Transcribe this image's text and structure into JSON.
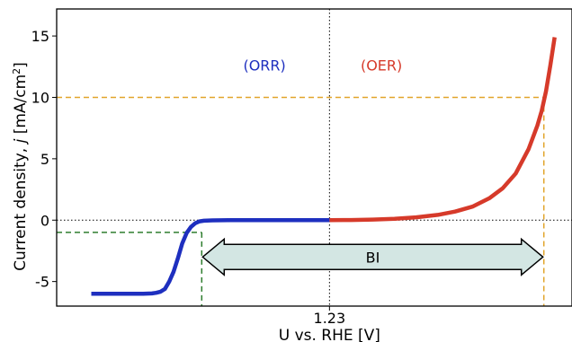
{
  "chart_data": {
    "type": "line",
    "xlabel": "U vs. RHE [V]",
    "ylabel_parts": {
      "pre": "Current density, ",
      "italic": "j",
      "mid": " [mA/cm",
      "sup": "2",
      "post": "]"
    },
    "x_ticks": [
      {
        "value": 1.23,
        "label": "1.23"
      }
    ],
    "y_ticks": [
      {
        "value": 15,
        "label": "15"
      },
      {
        "value": 10,
        "label": "10"
      },
      {
        "value": 5,
        "label": "5"
      },
      {
        "value": 0,
        "label": "0"
      },
      {
        "value": -5,
        "label": "-5"
      }
    ],
    "xlim": [
      0.6,
      1.79
    ],
    "ylim": [
      -7.0,
      17.2
    ],
    "grid": false,
    "series": [
      {
        "name": "(ORR)",
        "color": "#1e2fbf",
        "x": [
          0.68,
          0.74,
          0.78,
          0.8,
          0.82,
          0.83,
          0.84,
          0.85,
          0.86,
          0.87,
          0.88,
          0.89,
          0.9,
          0.91,
          0.92,
          0.93,
          0.94,
          0.96,
          0.98,
          1.0,
          1.05,
          1.1,
          1.15,
          1.2,
          1.23
        ],
        "y": [
          -6.0,
          -6.0,
          -6.0,
          -5.99,
          -5.97,
          -5.92,
          -5.82,
          -5.6,
          -5.0,
          -4.2,
          -3.1,
          -1.9,
          -1.05,
          -0.55,
          -0.25,
          -0.1,
          -0.05,
          -0.02,
          -0.01,
          0,
          0,
          0,
          0,
          0,
          0
        ]
      },
      {
        "name": "(OER)",
        "color": "#d63a2a",
        "x": [
          1.23,
          1.28,
          1.33,
          1.38,
          1.43,
          1.48,
          1.52,
          1.56,
          1.6,
          1.63,
          1.66,
          1.69,
          1.71,
          1.72,
          1.73,
          1.74,
          1.75
        ],
        "y": [
          0,
          0.01,
          0.05,
          0.11,
          0.23,
          0.43,
          0.7,
          1.1,
          1.8,
          2.6,
          3.8,
          5.8,
          7.7,
          8.9,
          10.5,
          12.6,
          14.9
        ]
      }
    ],
    "reference_lines": {
      "horizontal_zero": 0,
      "vertical_x": 1.23,
      "oer_marker": {
        "x": 1.725,
        "y": 10,
        "color": "#e1a42a"
      },
      "orr_marker": {
        "x": 0.935,
        "y": -1,
        "color": "#2e7d2e"
      }
    },
    "annotations": {
      "orr_label": "(ORR)",
      "oer_label": "(OER)",
      "bifunctional_gap": {
        "label": "BI",
        "x_start": 0.935,
        "x_end": 1.725,
        "y": -3,
        "fill": "#d3e6e3"
      }
    }
  }
}
